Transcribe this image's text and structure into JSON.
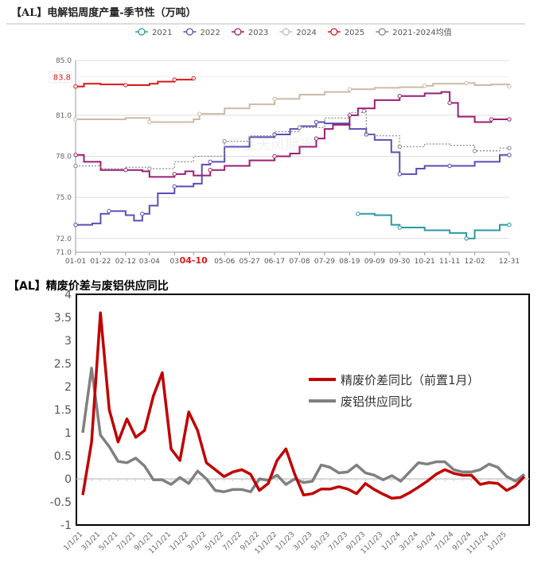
{
  "chart_data": [
    {
      "type": "line",
      "title": "【AL】电解铝周度产量-季节性（万吨）",
      "watermark": "紫金天风期货",
      "yticks": [
        "85.0",
        "81.0",
        "78.0",
        "75.0",
        "72.0",
        "71.0"
      ],
      "ylim": [
        71,
        85
      ],
      "xticks": [
        "01-01",
        "01-22",
        "02-12",
        "03-04",
        "03",
        "04-10",
        "05-06",
        "05-27",
        "06-17",
        "07-08",
        "07-29",
        "08-19",
        "09-09",
        "09-30",
        "10-21",
        "11-11",
        "12-02",
        "12-31"
      ],
      "highlight_x": "04-10",
      "highlight_y": "83.8",
      "legend_position": "top",
      "series": [
        {
          "name": "2021",
          "color": "#2a9aa0",
          "dash": false,
          "points": [
            [
              "08-26",
              73.8
            ],
            [
              "09-09",
              73.7
            ],
            [
              "09-23",
              73.0
            ],
            [
              "09-30",
              72.8
            ],
            [
              "10-21",
              72.6
            ],
            [
              "11-11",
              72.4
            ],
            [
              "11-25",
              72.0
            ],
            [
              "12-02",
              72.6
            ],
            [
              "12-23",
              73.0
            ],
            [
              "12-31",
              73.0
            ]
          ]
        },
        {
          "name": "2022",
          "color": "#5b4fb5",
          "dash": false,
          "points": [
            [
              "01-01",
              73.0
            ],
            [
              "01-15",
              73.1
            ],
            [
              "01-22",
              73.8
            ],
            [
              "01-29",
              74.0
            ],
            [
              "02-12",
              73.7
            ],
            [
              "02-19",
              73.3
            ],
            [
              "02-26",
              73.8
            ],
            [
              "03-04",
              74.4
            ],
            [
              "03-11",
              75.3
            ],
            [
              "03-25",
              75.8
            ],
            [
              "04-10",
              76.0
            ],
            [
              "04-17",
              77.4
            ],
            [
              "04-24",
              77.6
            ],
            [
              "05-06",
              78.7
            ],
            [
              "05-27",
              79.4
            ],
            [
              "06-17",
              79.6
            ],
            [
              "06-30",
              80.0
            ],
            [
              "07-08",
              80.2
            ],
            [
              "07-22",
              80.5
            ],
            [
              "07-29",
              80.4
            ],
            [
              "08-19",
              80.0
            ],
            [
              "09-02",
              79.6
            ],
            [
              "09-09",
              79.2
            ],
            [
              "09-23",
              78.3
            ],
            [
              "09-30",
              76.7
            ],
            [
              "10-14",
              77.1
            ],
            [
              "10-21",
              77.3
            ],
            [
              "11-11",
              77.3
            ],
            [
              "12-02",
              77.6
            ],
            [
              "12-23",
              78.1
            ],
            [
              "12-31",
              78.1
            ]
          ]
        },
        {
          "name": "2023",
          "color": "#9b1f72",
          "dash": false,
          "points": [
            [
              "01-01",
              78.1
            ],
            [
              "01-08",
              77.6
            ],
            [
              "01-22",
              77.0
            ],
            [
              "02-12",
              77.0
            ],
            [
              "02-26",
              76.9
            ],
            [
              "03-04",
              76.5
            ],
            [
              "03-25",
              76.7
            ],
            [
              "04-03",
              76.9
            ],
            [
              "04-10",
              76.6
            ],
            [
              "04-24",
              77.0
            ],
            [
              "05-06",
              77.3
            ],
            [
              "05-27",
              77.7
            ],
            [
              "06-17",
              78.0
            ],
            [
              "06-30",
              78.2
            ],
            [
              "07-08",
              78.7
            ],
            [
              "07-22",
              79.3
            ],
            [
              "07-29",
              80.0
            ],
            [
              "08-05",
              80.3
            ],
            [
              "08-19",
              81.0
            ],
            [
              "08-26",
              81.5
            ],
            [
              "09-09",
              82.1
            ],
            [
              "09-30",
              82.4
            ],
            [
              "10-21",
              82.6
            ],
            [
              "11-04",
              82.7
            ],
            [
              "11-11",
              81.9
            ],
            [
              "11-18",
              80.9
            ],
            [
              "12-02",
              80.5
            ],
            [
              "12-16",
              80.7
            ],
            [
              "12-31",
              80.7
            ]
          ]
        },
        {
          "name": "2024",
          "color": "#cbbba6",
          "dash": false,
          "points": [
            [
              "01-01",
              80.7
            ],
            [
              "02-12",
              80.8
            ],
            [
              "02-26",
              80.8
            ],
            [
              "03-04",
              80.5
            ],
            [
              "03-25",
              80.5
            ],
            [
              "04-10",
              80.7
            ],
            [
              "04-15",
              81.1
            ],
            [
              "05-06",
              81.5
            ],
            [
              "05-27",
              81.8
            ],
            [
              "06-17",
              82.2
            ],
            [
              "07-08",
              82.5
            ],
            [
              "07-29",
              82.7
            ],
            [
              "08-19",
              82.9
            ],
            [
              "09-09",
              83.0
            ],
            [
              "09-30",
              83.05
            ],
            [
              "10-21",
              83.15
            ],
            [
              "10-28",
              83.3
            ],
            [
              "11-11",
              83.3
            ],
            [
              "11-25",
              83.35
            ],
            [
              "12-02",
              83.2
            ],
            [
              "12-16",
              83.25
            ],
            [
              "12-31",
              83.1
            ]
          ]
        },
        {
          "name": "2025",
          "color": "#d9161c",
          "dash": false,
          "points": [
            [
              "01-01",
              83.1
            ],
            [
              "01-08",
              83.3
            ],
            [
              "01-22",
              83.25
            ],
            [
              "02-12",
              83.2
            ],
            [
              "03-04",
              83.3
            ],
            [
              "03-11",
              83.45
            ],
            [
              "03-25",
              83.6
            ],
            [
              "04-10",
              83.7
            ]
          ]
        },
        {
          "name": "2021-2024均值",
          "color": "#888888",
          "dash": true,
          "points": [
            [
              "01-01",
              77.3
            ],
            [
              "01-22",
              77.1
            ],
            [
              "02-12",
              77.2
            ],
            [
              "03-04",
              77.1
            ],
            [
              "03-25",
              77.6
            ],
            [
              "04-10",
              78.0
            ],
            [
              "05-06",
              79.1
            ],
            [
              "05-27",
              79.5
            ],
            [
              "06-17",
              79.8
            ],
            [
              "07-08",
              80.1
            ],
            [
              "07-29",
              80.8
            ],
            [
              "08-19",
              81.2
            ],
            [
              "08-31",
              81.3
            ],
            [
              "09-02",
              79.6
            ],
            [
              "09-09",
              79.5
            ],
            [
              "09-30",
              78.7
            ],
            [
              "10-21",
              78.9
            ],
            [
              "11-11",
              78.8
            ],
            [
              "12-02",
              78.4
            ],
            [
              "12-23",
              78.6
            ],
            [
              "12-31",
              78.6
            ]
          ]
        }
      ]
    },
    {
      "type": "line",
      "title": "【AL】精废价差与废铝供应同比",
      "ylim": [
        -1,
        4
      ],
      "yticks": [
        "4",
        "3.5",
        "3",
        "2.5",
        "2",
        "1.5",
        "1",
        "0.5",
        "0",
        "-0.5",
        "-1"
      ],
      "xticks": [
        "1/1/21",
        "3/1/21",
        "5/1/21",
        "7/1/21",
        "9/1/21",
        "11/1/21",
        "1/1/22",
        "3/1/22",
        "5/1/22",
        "7/1/22",
        "9/1/22",
        "11/1/22",
        "1/1/23",
        "3/1/23",
        "5/1/23",
        "7/1/23",
        "9/1/23",
        "11/1/23",
        "1/1/24",
        "3/1/24",
        "5/1/24",
        "7/1/24",
        "9/1/24",
        "11/1/24",
        "1/1/25"
      ],
      "legend_position": "right-middle",
      "series": [
        {
          "name": "精废价差同比（前置1月）",
          "color": "#c00000",
          "values": [
            -0.35,
            0.8,
            3.6,
            1.5,
            0.8,
            1.3,
            0.9,
            1.05,
            1.8,
            2.3,
            0.65,
            0.4,
            1.45,
            1.05,
            0.35,
            0.2,
            0.05,
            0.15,
            0.2,
            0.1,
            -0.25,
            -0.1,
            0.4,
            0.65,
            0.1,
            -0.35,
            -0.32,
            -0.22,
            -0.22,
            -0.17,
            -0.22,
            -0.32,
            -0.1,
            -0.23,
            -0.33,
            -0.42,
            -0.4,
            -0.3,
            -0.18,
            -0.05,
            0.1,
            0.2,
            0.12,
            0.08,
            0.08,
            -0.12,
            -0.08,
            -0.1,
            -0.25,
            -0.15,
            0.05
          ]
        },
        {
          "name": "废铝供应同比",
          "color": "#808080",
          "values": [
            1.0,
            2.4,
            0.95,
            0.7,
            0.38,
            0.35,
            0.45,
            0.28,
            -0.02,
            -0.02,
            -0.12,
            0.03,
            -0.1,
            0.17,
            0.0,
            -0.25,
            -0.28,
            -0.23,
            -0.23,
            -0.28,
            0.0,
            -0.03,
            0.08,
            -0.12,
            0.0,
            -0.08,
            -0.05,
            0.3,
            0.25,
            0.13,
            0.15,
            0.3,
            0.13,
            0.08,
            -0.02,
            0.07,
            -0.05,
            0.15,
            0.35,
            0.32,
            0.37,
            0.37,
            0.2,
            0.15,
            0.15,
            0.2,
            0.32,
            0.25,
            0.05,
            -0.05,
            0.1
          ]
        }
      ]
    }
  ]
}
